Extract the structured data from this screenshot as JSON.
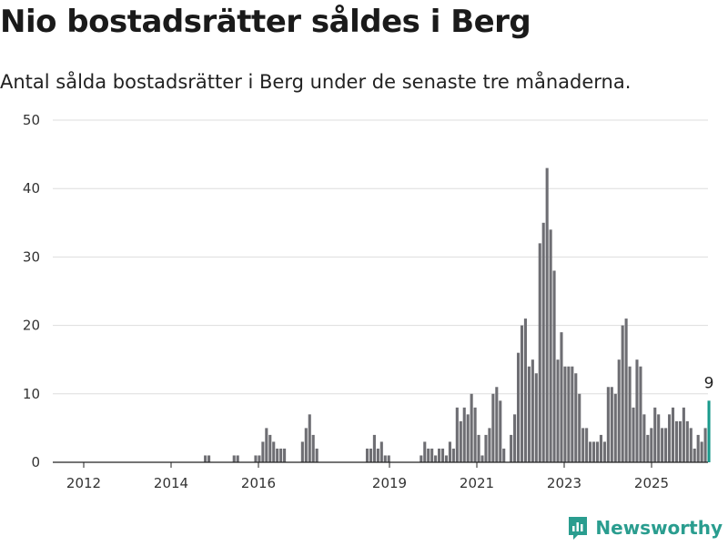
{
  "header": {
    "title": "Nio bostadsrätter såldes i Berg",
    "subtitle": "Antal sålda bostadsrätter i Berg under de senaste tre månaderna."
  },
  "brand": {
    "name": "Newsworthy",
    "color": "#2a9d8f"
  },
  "chart_data": {
    "type": "bar",
    "xlabel": "",
    "ylabel": "",
    "ylim": [
      0,
      50
    ],
    "yticks": [
      0,
      10,
      20,
      30,
      40,
      50
    ],
    "xticks": [
      "2012",
      "2014",
      "2016",
      "2019",
      "2021",
      "2023",
      "2025"
    ],
    "grid": true,
    "bar_color": "#6e6e73",
    "highlight_color": "#1a9a8c",
    "highlight_label": "9",
    "values": [
      0,
      0,
      0,
      0,
      0,
      0,
      0,
      0,
      0,
      0,
      0,
      0,
      0,
      0,
      0,
      0,
      0,
      0,
      0,
      0,
      0,
      0,
      0,
      0,
      0,
      0,
      0,
      0,
      0,
      0,
      0,
      0,
      0,
      0,
      0,
      0,
      0,
      0,
      0,
      0,
      0,
      1,
      1,
      0,
      0,
      0,
      0,
      0,
      0,
      1,
      1,
      0,
      0,
      0,
      0,
      1,
      1,
      3,
      5,
      4,
      3,
      2,
      2,
      2,
      0,
      0,
      0,
      0,
      3,
      5,
      7,
      4,
      2,
      0,
      0,
      0,
      0,
      0,
      0,
      0,
      0,
      0,
      0,
      0,
      0,
      0,
      2,
      2,
      4,
      2,
      3,
      1,
      1,
      0,
      0,
      0,
      0,
      0,
      0,
      0,
      0,
      1,
      3,
      2,
      2,
      1,
      2,
      2,
      1,
      3,
      2,
      8,
      6,
      8,
      7,
      10,
      8,
      4,
      1,
      4,
      5,
      10,
      11,
      9,
      2,
      0,
      4,
      7,
      16,
      20,
      21,
      14,
      15,
      13,
      32,
      35,
      43,
      34,
      28,
      15,
      19,
      14,
      14,
      14,
      13,
      10,
      5,
      5,
      3,
      3,
      3,
      4,
      3,
      11,
      11,
      10,
      15,
      20,
      21,
      14,
      8,
      15,
      14,
      7,
      4,
      5,
      8,
      7,
      5,
      5,
      7,
      8,
      6,
      6,
      8,
      6,
      5,
      2,
      4,
      3,
      5,
      9
    ]
  }
}
